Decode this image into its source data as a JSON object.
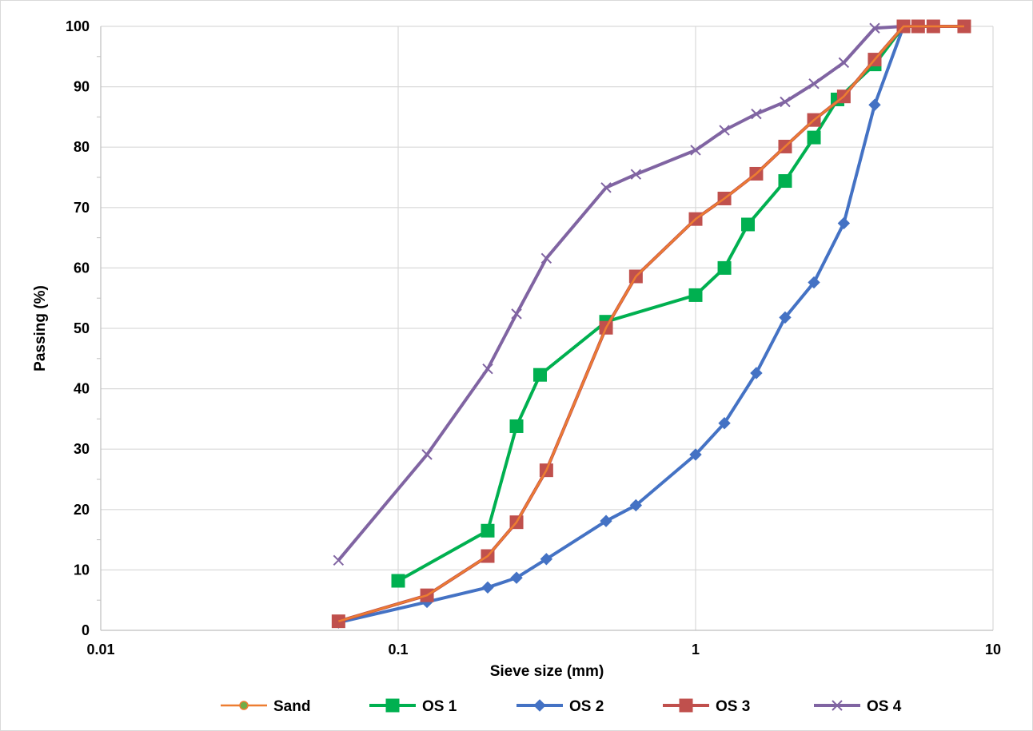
{
  "chart_data": {
    "type": "line",
    "title": "",
    "xlabel": "Sieve size (mm)",
    "ylabel": "Passing (%)",
    "x_scale": "log",
    "xlim": [
      0.01,
      10
    ],
    "ylim": [
      0,
      100
    ],
    "x_ticks": [
      0.01,
      0.1,
      1,
      10
    ],
    "x_tick_labels": [
      "0.01",
      "0.1",
      "1",
      "10"
    ],
    "y_ticks": [
      0,
      10,
      20,
      30,
      40,
      50,
      60,
      70,
      80,
      90,
      100
    ],
    "y_tick_labels": [
      "0",
      "10",
      "20",
      "30",
      "40",
      "50",
      "60",
      "70",
      "80",
      "90",
      "100"
    ],
    "grid": true,
    "legend_position": "bottom",
    "series": [
      {
        "name": "Sand",
        "color": "#ED7D31",
        "marker": "circle",
        "marker_color": "#70AD47",
        "x": [
          0.063,
          0.125,
          0.2,
          0.25,
          0.315,
          0.5,
          0.63,
          1,
          1.25,
          1.6,
          2,
          2.5,
          3.15,
          4,
          5,
          5.6,
          6.3,
          8
        ],
        "y": [
          1.5,
          5.8,
          12.3,
          17.9,
          26.5,
          50.1,
          58.6,
          68.1,
          71.5,
          75.6,
          80.1,
          84.5,
          88.4,
          94.5,
          100,
          100,
          100,
          100
        ]
      },
      {
        "name": "OS 1",
        "color": "#00B050",
        "marker": "square",
        "marker_color": "#00B050",
        "x": [
          0.1,
          0.2,
          0.25,
          0.3,
          0.5,
          1,
          1.25,
          1.5,
          2,
          2.5,
          3,
          4,
          5
        ],
        "y": [
          8.2,
          16.5,
          33.8,
          42.3,
          51.1,
          55.5,
          60,
          67.2,
          74.4,
          81.6,
          87.9,
          93.7,
          100
        ]
      },
      {
        "name": "OS 2",
        "color": "#4472C4",
        "marker": "diamond",
        "marker_color": "#4472C4",
        "x": [
          0.063,
          0.125,
          0.2,
          0.25,
          0.315,
          0.5,
          0.63,
          1,
          1.25,
          1.6,
          2,
          2.5,
          3.15,
          4,
          5
        ],
        "y": [
          1.3,
          4.7,
          7.1,
          8.7,
          11.8,
          18.1,
          20.7,
          29.1,
          34.3,
          42.6,
          51.8,
          57.6,
          67.4,
          87,
          100
        ]
      },
      {
        "name": "OS 3",
        "color": "#C0504D",
        "marker": "square",
        "marker_color": "#C0504D",
        "x": [
          0.063,
          0.125,
          0.2,
          0.25,
          0.315,
          0.5,
          0.63,
          1,
          1.25,
          1.6,
          2,
          2.5,
          3.15,
          4,
          5,
          5.6,
          6.3,
          8
        ],
        "y": [
          1.5,
          5.8,
          12.3,
          17.9,
          26.5,
          50.1,
          58.6,
          68.1,
          71.5,
          75.6,
          80.1,
          84.5,
          88.4,
          94.5,
          100,
          100,
          100,
          100
        ]
      },
      {
        "name": "OS 4",
        "color": "#8064A2",
        "marker": "x",
        "marker_color": "#8064A2",
        "x": [
          0.063,
          0.125,
          0.2,
          0.25,
          0.315,
          0.5,
          0.63,
          1,
          1.25,
          1.6,
          2,
          2.5,
          3.15,
          4,
          5,
          5.6,
          6.3,
          8
        ],
        "y": [
          11.6,
          29.1,
          43.3,
          52.4,
          61.6,
          73.3,
          75.5,
          79.5,
          82.8,
          85.5,
          87.5,
          90.5,
          94,
          99.7,
          100,
          100,
          100,
          100
        ]
      }
    ]
  }
}
